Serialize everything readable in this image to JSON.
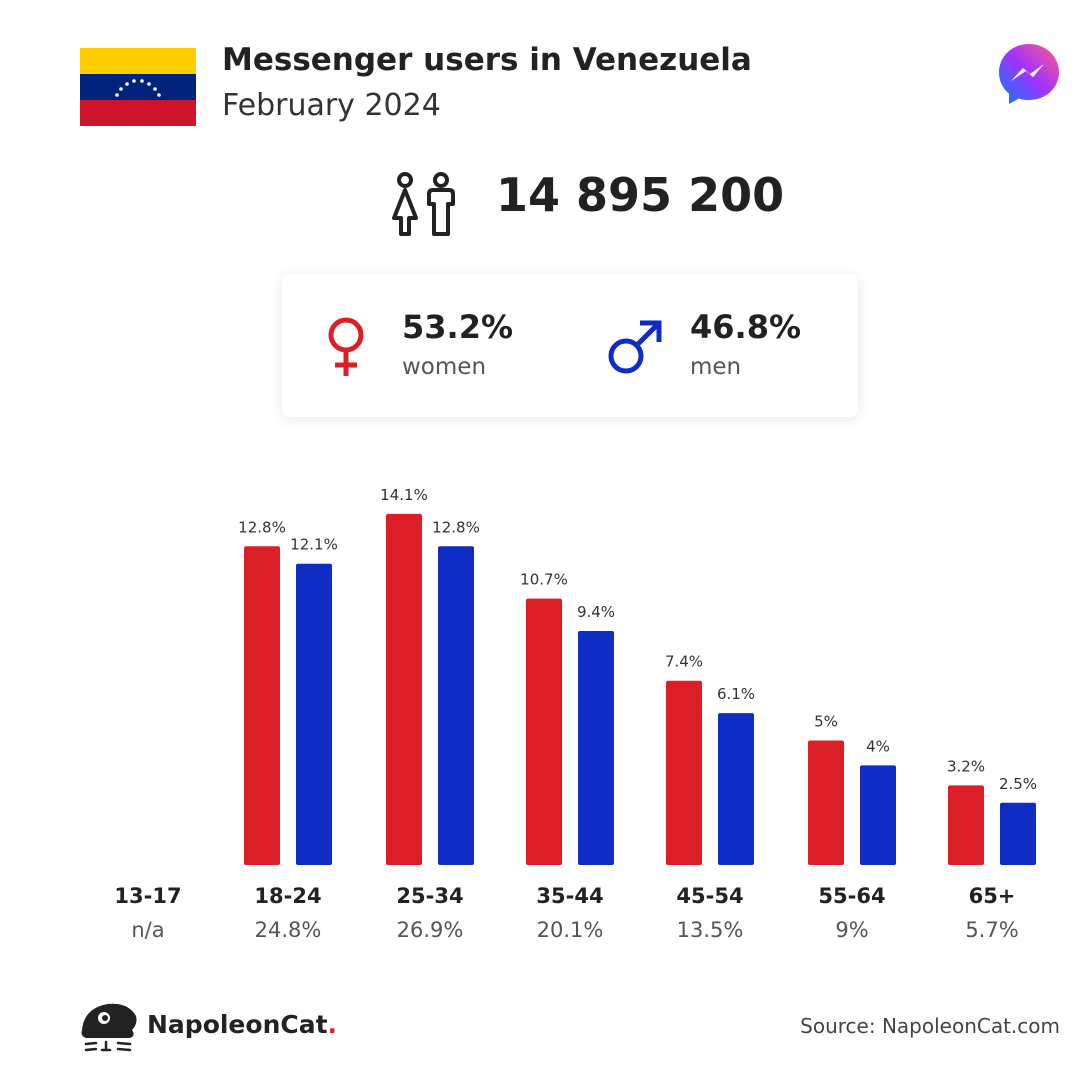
{
  "header": {
    "title": "Messenger users in Venezuela",
    "subtitle": "February 2024"
  },
  "total_users": "14 895 200",
  "gender": {
    "women_pct": "53.2%",
    "women_label": "women",
    "men_pct": "46.8%",
    "men_label": "men"
  },
  "colors": {
    "women": "#dc1f26",
    "men": "#0f2cc4"
  },
  "icons": {
    "flag": "venezuela-flag-icon",
    "app": "messenger-logo-icon",
    "people": "people-icon",
    "female": "female-symbol-icon",
    "male": "male-symbol-icon",
    "brand": "napoleoncat-logo-icon"
  },
  "chart_data": {
    "type": "bar",
    "categories": [
      "13-17",
      "18-24",
      "25-34",
      "35-44",
      "45-54",
      "55-64",
      "65+"
    ],
    "category_totals": [
      "n/a",
      "24.8%",
      "26.9%",
      "20.1%",
      "13.5%",
      "9%",
      "5.7%"
    ],
    "series": [
      {
        "color": "#dc1f26",
        "values": [
          null,
          12.8,
          14.1,
          10.7,
          7.4,
          5,
          3.2
        ],
        "labels": [
          "",
          "12.8%",
          "14.1%",
          "10.7%",
          "7.4%",
          "5%",
          "3.2%"
        ]
      },
      {
        "color": "#0f2cc4",
        "values": [
          null,
          12.1,
          12.8,
          9.4,
          6.1,
          4,
          2.5
        ],
        "labels": [
          "",
          "12.1%",
          "12.8%",
          "9.4%",
          "6.1%",
          "4%",
          "2.5%"
        ]
      }
    ]
  },
  "footer": {
    "brand_name": "NapoleonCat",
    "brand_dot": ".",
    "source": "Source: NapoleonCat.com"
  }
}
